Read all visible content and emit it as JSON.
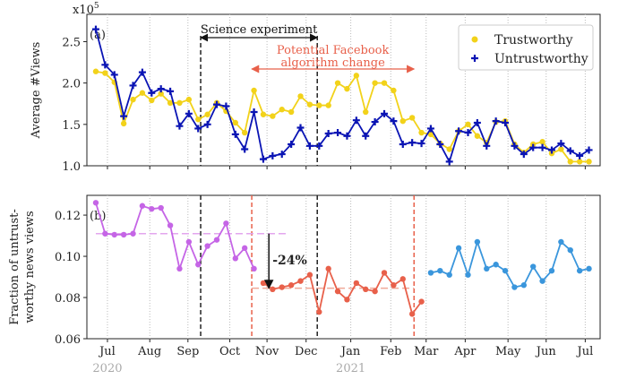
{
  "chart_data": [
    {
      "type": "line",
      "panel_label": "(a)",
      "y_label": "Average #Views",
      "y_multiplier": {
        "base": "x10",
        "exponent": "5"
      },
      "x": [
        0,
        1,
        2,
        3,
        4,
        5,
        6,
        7,
        8,
        9,
        10,
        11,
        12,
        13,
        14,
        15,
        16,
        17,
        18,
        19,
        20,
        21,
        22,
        23,
        24,
        25,
        26,
        27,
        28,
        29,
        30,
        31,
        32,
        33,
        34,
        35,
        36,
        37,
        38,
        39,
        40,
        41,
        42,
        43,
        44,
        45,
        46,
        47,
        48,
        49,
        50,
        51,
        52,
        53
      ],
      "xlim": [
        -0.96,
        54.2
      ],
      "xticks": [
        {
          "value": 1.25,
          "label": "Jul"
        },
        {
          "value": 5.8,
          "label": "Aug"
        },
        {
          "value": 9.9,
          "label": "Sep"
        },
        {
          "value": 14.4,
          "label": "Oct"
        },
        {
          "value": 18.4,
          "label": "Nov"
        },
        {
          "value": 22.6,
          "label": "Dec"
        },
        {
          "value": 27.4,
          "label": "Jan"
        },
        {
          "value": 31.7,
          "label": "Feb"
        },
        {
          "value": 35.5,
          "label": "Mar"
        },
        {
          "value": 39.7,
          "label": "Apr"
        },
        {
          "value": 44.3,
          "label": "May"
        },
        {
          "value": 48.4,
          "label": "Jun"
        },
        {
          "value": 52.6,
          "label": "Jul"
        }
      ],
      "ylim": [
        1.0,
        2.83
      ],
      "yticks": [
        {
          "value": 1,
          "label": "1.0"
        },
        {
          "value": 1.5,
          "label": "1.5"
        },
        {
          "value": 2,
          "label": "2.0"
        },
        {
          "value": 2.5,
          "label": "2.5"
        }
      ],
      "grid": true,
      "legend": "upper right",
      "series": [
        {
          "name": "Trustworthy",
          "color": "#f2d21a",
          "marker": "circle",
          "values": [
            2.14,
            2.12,
            2.01,
            1.51,
            1.8,
            1.88,
            1.79,
            1.87,
            1.76,
            1.76,
            1.8,
            1.56,
            1.62,
            1.76,
            1.66,
            1.52,
            1.4,
            1.91,
            1.62,
            1.6,
            1.68,
            1.65,
            1.84,
            1.74,
            1.73,
            1.73,
            2.0,
            1.93,
            2.09,
            1.65,
            2.0,
            2.0,
            1.91,
            1.54,
            1.58,
            1.4,
            1.38,
            1.27,
            1.2,
            1.42,
            1.5,
            1.36,
            1.28,
            1.53,
            1.54,
            1.26,
            1.16,
            1.26,
            1.29,
            1.15,
            1.2,
            1.05,
            1.05,
            1.05
          ]
        },
        {
          "name": "Untrustworthy",
          "color": "#0a14b4",
          "marker": "plus",
          "values": [
            2.65,
            2.22,
            2.1,
            1.6,
            1.97,
            2.13,
            1.88,
            1.93,
            1.9,
            1.48,
            1.63,
            1.45,
            1.5,
            1.74,
            1.72,
            1.38,
            1.2,
            1.65,
            1.08,
            1.12,
            1.14,
            1.26,
            1.46,
            1.24,
            1.24,
            1.39,
            1.4,
            1.36,
            1.55,
            1.36,
            1.53,
            1.63,
            1.54,
            1.26,
            1.28,
            1.27,
            1.45,
            1.26,
            1.05,
            1.42,
            1.4,
            1.52,
            1.24,
            1.54,
            1.52,
            1.24,
            1.14,
            1.22,
            1.22,
            1.19,
            1.27,
            1.18,
            1.12,
            1.19
          ]
        }
      ],
      "annotations": [
        {
          "text": "Science experiment",
          "x": [
            11.27,
            23.8
          ],
          "color": "#111"
        },
        {
          "text": "Potential Facebook",
          "text2": "algorithm change",
          "x": [
            16.76,
            34.2
          ],
          "color": "#e8604a"
        }
      ],
      "vlines": [
        {
          "x": 11.27,
          "color": "#222"
        },
        {
          "x": 23.8,
          "color": "#222"
        }
      ]
    },
    {
      "type": "line",
      "panel_label": "(b)",
      "y_label": "Fraction of untrust-",
      "y_label2": "worthy news views",
      "x": [
        0,
        1,
        2,
        3,
        4,
        5,
        6,
        7,
        8,
        9,
        10,
        11,
        12,
        13,
        14,
        15,
        16,
        17,
        18,
        19,
        20,
        21,
        22,
        23,
        24,
        25,
        26,
        27,
        28,
        29,
        30,
        31,
        32,
        33,
        34,
        35,
        36,
        37,
        38,
        39,
        40,
        41,
        42,
        43,
        44,
        45,
        46,
        47,
        48,
        49,
        50,
        51,
        52,
        53
      ],
      "xlim": [
        -0.96,
        54.2
      ],
      "xticks": [
        {
          "value": 1.25,
          "label": "Jul"
        },
        {
          "value": 5.8,
          "label": "Aug"
        },
        {
          "value": 9.9,
          "label": "Sep"
        },
        {
          "value": 14.4,
          "label": "Oct"
        },
        {
          "value": 18.4,
          "label": "Nov"
        },
        {
          "value": 22.6,
          "label": "Dec"
        },
        {
          "value": 27.4,
          "label": "Jan"
        },
        {
          "value": 31.7,
          "label": "Feb"
        },
        {
          "value": 35.5,
          "label": "Mar"
        },
        {
          "value": 39.7,
          "label": "Apr"
        },
        {
          "value": 44.3,
          "label": "May"
        },
        {
          "value": 48.4,
          "label": "Jun"
        },
        {
          "value": 52.6,
          "label": "Jul"
        }
      ],
      "year_labels": [
        {
          "value": 1.25,
          "label": "2020"
        },
        {
          "value": 27.4,
          "label": "2021"
        }
      ],
      "ylim": [
        0.06,
        0.1296
      ],
      "yticks": [
        0.06,
        0.08,
        {
          "value": 0.1,
          "label": "0.10"
        },
        0.12
      ],
      "grid": true,
      "series": [
        {
          "color": "#c565e6",
          "values": [
            0.126,
            0.111,
            0.1105,
            0.1105,
            0.111,
            0.1245,
            0.123,
            0.1235,
            0.115,
            0.094,
            0.107,
            0.096,
            0.105,
            0.108,
            0.116,
            0.099,
            0.104,
            0.094,
            null,
            null,
            null,
            null,
            null,
            null,
            null,
            null,
            null,
            null,
            null,
            null,
            null,
            null,
            null,
            null,
            null,
            null,
            null,
            null,
            null,
            null,
            null,
            null,
            null,
            null,
            null,
            null,
            null,
            null,
            null,
            null,
            null,
            null,
            null,
            null
          ]
        },
        {
          "color": "#e8604a",
          "values": [
            null,
            null,
            null,
            null,
            null,
            null,
            null,
            null,
            null,
            null,
            null,
            null,
            null,
            null,
            null,
            null,
            null,
            null,
            0.087,
            0.084,
            0.085,
            0.086,
            0.088,
            0.091,
            0.073,
            0.094,
            0.083,
            0.079,
            0.087,
            0.084,
            0.083,
            0.092,
            0.086,
            0.089,
            0.072,
            0.078,
            null,
            null,
            null,
            null,
            null,
            null,
            null,
            null,
            null,
            null,
            null,
            null,
            null,
            null,
            null,
            null,
            null,
            null
          ]
        },
        {
          "color": "#3a96dc",
          "values": [
            null,
            null,
            null,
            null,
            null,
            null,
            null,
            null,
            null,
            null,
            null,
            null,
            null,
            null,
            null,
            null,
            null,
            null,
            null,
            null,
            null,
            null,
            null,
            null,
            null,
            null,
            null,
            null,
            null,
            null,
            null,
            null,
            null,
            null,
            null,
            null,
            0.092,
            0.093,
            0.091,
            0.104,
            0.091,
            0.107,
            0.094,
            0.096,
            0.093,
            0.085,
            0.086,
            0.095,
            0.088,
            0.093,
            0.107,
            0.103,
            0.093,
            0.094
          ]
        }
      ],
      "hlines": [
        {
          "y": 0.111,
          "x": [
            0,
            20.5
          ],
          "color": "#e3a6ee"
        },
        {
          "y": 0.0845,
          "x": [
            16.76,
            34.2
          ],
          "color": "#f0a898"
        }
      ],
      "vlines": [
        {
          "x": 11.27,
          "color": "#222"
        },
        {
          "x": 23.8,
          "color": "#222"
        },
        {
          "x": 16.76,
          "color": "#e8604a"
        },
        {
          "x": 34.2,
          "color": "#e8604a"
        }
      ],
      "change": {
        "text": "-24%",
        "x": 18.6,
        "from": 0.111,
        "to": 0.0845
      }
    }
  ]
}
